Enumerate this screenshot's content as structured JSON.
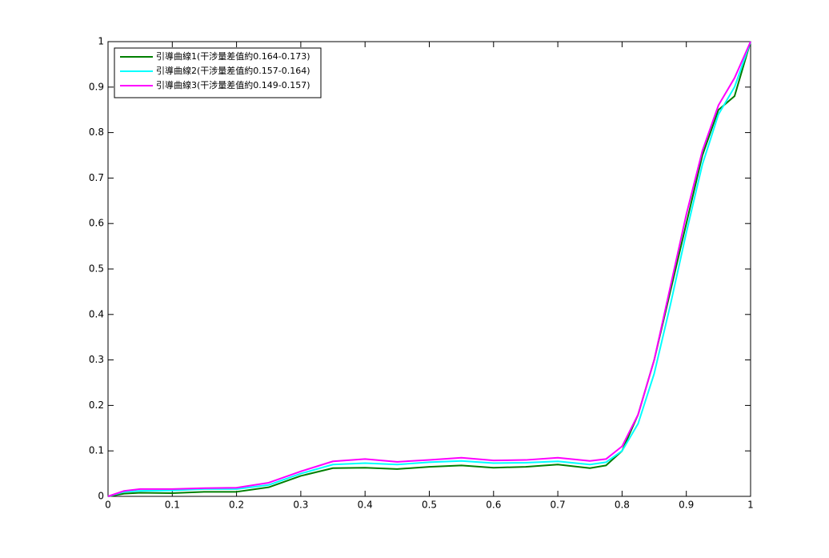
{
  "chart_data": {
    "type": "line",
    "x": [
      0,
      0.025,
      0.05,
      0.1,
      0.15,
      0.2,
      0.25,
      0.3,
      0.35,
      0.4,
      0.45,
      0.5,
      0.55,
      0.6,
      0.65,
      0.7,
      0.75,
      0.775,
      0.8,
      0.825,
      0.85,
      0.875,
      0.9,
      0.925,
      0.95,
      0.975,
      1
    ],
    "series": [
      {
        "name": "引導曲線1(干涉量差值約0.164-0.173)",
        "color": "#007f00",
        "values": [
          0,
          0.006,
          0.008,
          0.007,
          0.01,
          0.01,
          0.02,
          0.045,
          0.062,
          0.063,
          0.06,
          0.065,
          0.068,
          0.063,
          0.065,
          0.07,
          0.062,
          0.068,
          0.1,
          0.18,
          0.3,
          0.45,
          0.6,
          0.75,
          0.85,
          0.88,
          1
        ]
      },
      {
        "name": "引導曲線2(干涉量差值約0.157-0.164)",
        "color": "#00ffff",
        "values": [
          0,
          0.01,
          0.012,
          0.013,
          0.016,
          0.016,
          0.025,
          0.05,
          0.07,
          0.073,
          0.07,
          0.075,
          0.078,
          0.073,
          0.074,
          0.077,
          0.07,
          0.075,
          0.1,
          0.16,
          0.27,
          0.42,
          0.58,
          0.73,
          0.84,
          0.9,
          1
        ]
      },
      {
        "name": "引導曲線3(干涉量差值約0.149-0.157)",
        "color": "#ff00ff",
        "values": [
          0,
          0.012,
          0.016,
          0.016,
          0.018,
          0.019,
          0.03,
          0.055,
          0.077,
          0.082,
          0.076,
          0.08,
          0.085,
          0.079,
          0.08,
          0.085,
          0.078,
          0.082,
          0.11,
          0.18,
          0.3,
          0.46,
          0.62,
          0.76,
          0.86,
          0.92,
          1
        ]
      }
    ],
    "xlim": [
      0,
      1
    ],
    "xticks": [
      0,
      0.1,
      0.2,
      0.3,
      0.4,
      0.5,
      0.6,
      0.7,
      0.8,
      0.9,
      1
    ],
    "ylim": [
      0,
      1
    ],
    "yticks": [
      0,
      0.1,
      0.2,
      0.3,
      0.4,
      0.5,
      0.6,
      0.7,
      0.8,
      0.9,
      1
    ],
    "grid": false,
    "legend": "northwest"
  }
}
